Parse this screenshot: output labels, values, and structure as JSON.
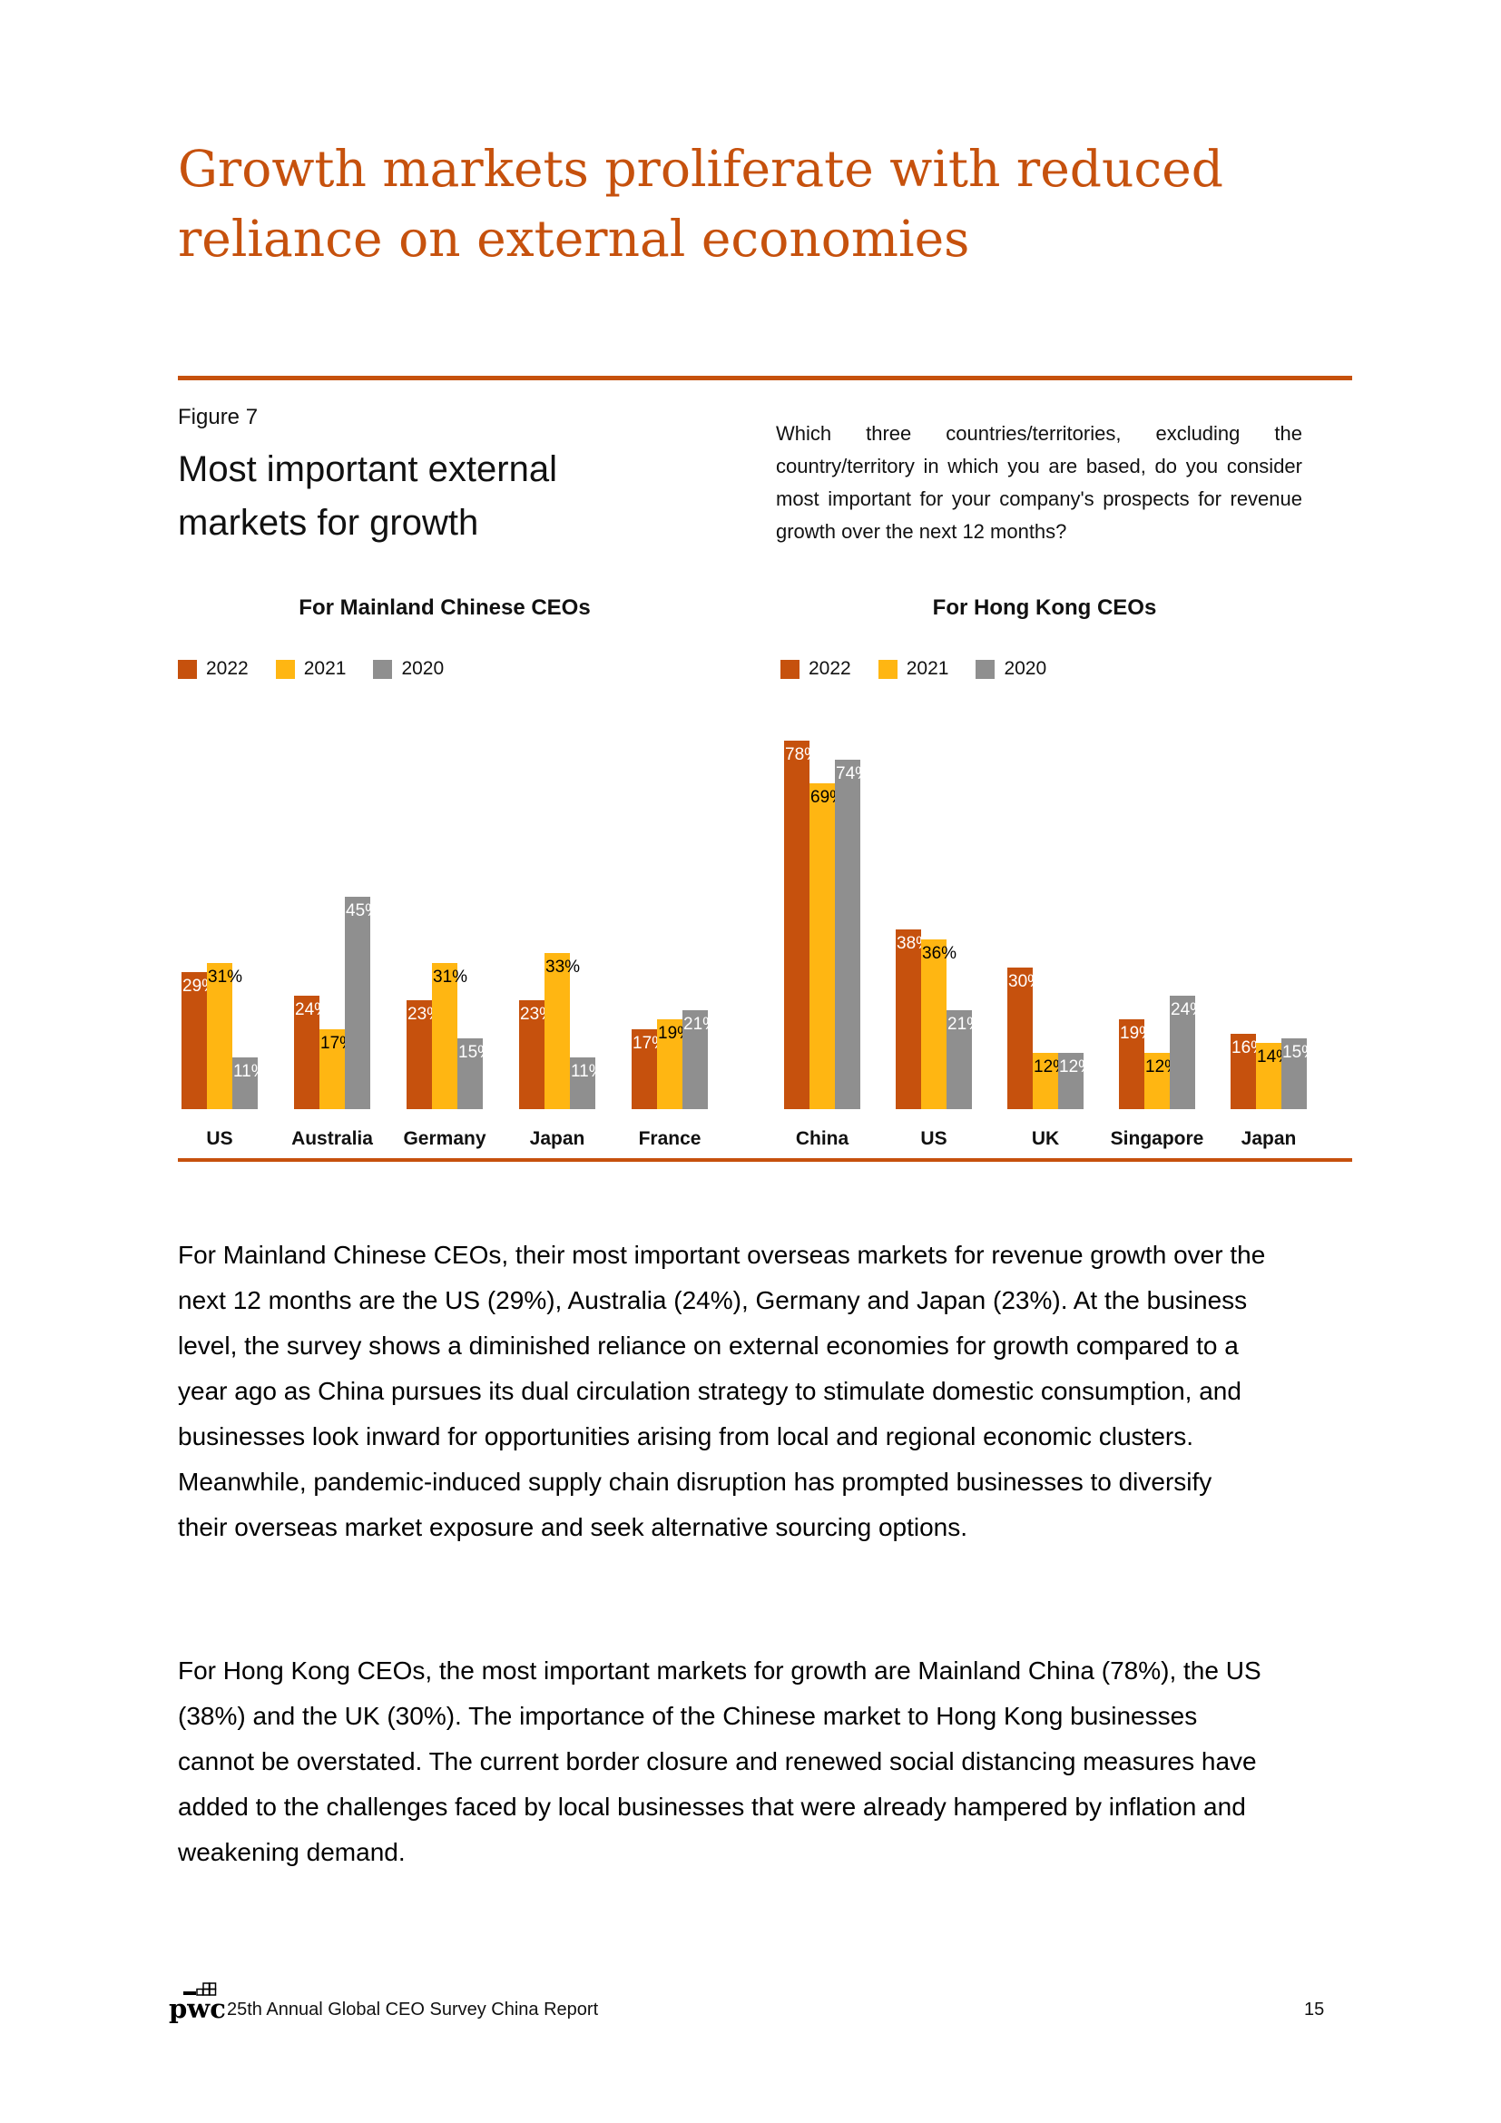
{
  "header": {
    "title_lines": [
      "Growth markets proliferate with reduced",
      "reliance on external economies"
    ]
  },
  "figure": {
    "label": "Figure 7",
    "heading_lines": [
      "Most important external",
      "markets for growth"
    ],
    "question": "Which three countries/territories, excluding the country/territory in which you are based, do you consider most important for your company's prospects for revenue growth over the next 12 months?"
  },
  "chart_data": [
    {
      "type": "bar",
      "title": "For Mainland Chinese CEOs",
      "categories": [
        "US",
        "Australia",
        "Germany",
        "Japan",
        "France"
      ],
      "series": [
        {
          "name": "2022",
          "color": "#C6510D",
          "label_color": "#FFFFFF",
          "values": [
            29,
            24,
            23,
            23,
            17
          ]
        },
        {
          "name": "2021",
          "color": "#FFB612",
          "label_color": "#000000",
          "values": [
            31,
            17,
            31,
            33,
            19
          ]
        },
        {
          "name": "2020",
          "color": "#8F8F8F",
          "label_color": "#FFFFFF",
          "values": [
            11,
            45,
            15,
            11,
            21
          ]
        }
      ],
      "unit": "%",
      "ylim": [
        0,
        85
      ],
      "grid": false,
      "legend_position": "top-left",
      "value_labels": "inside-top"
    },
    {
      "type": "bar",
      "title": "For Hong Kong CEOs",
      "categories": [
        "China",
        "US",
        "UK",
        "Singapore",
        "Japan"
      ],
      "series": [
        {
          "name": "2022",
          "color": "#C6510D",
          "label_color": "#FFFFFF",
          "values": [
            78,
            38,
            30,
            19,
            16
          ]
        },
        {
          "name": "2021",
          "color": "#FFB612",
          "label_color": "#000000",
          "values": [
            69,
            36,
            12,
            12,
            14
          ]
        },
        {
          "name": "2020",
          "color": "#8F8F8F",
          "label_color": "#FFFFFF",
          "values": [
            74,
            21,
            12,
            24,
            15
          ]
        }
      ],
      "unit": "%",
      "ylim": [
        0,
        85
      ],
      "grid": false,
      "legend_position": "top-left",
      "value_labels": "inside-top"
    }
  ],
  "body": {
    "paragraph1": "For Mainland Chinese CEOs, their most important overseas markets for revenue growth over the next 12 months are the US (29%), Australia (24%), Germany and Japan (23%). At the business level, the survey shows a diminished reliance on external economies for growth compared to a year ago as China pursues its dual circulation strategy to stimulate domestic consumption, and businesses look inward for opportunities arising from local and regional economic clusters. Meanwhile, pandemic-induced supply chain disruption has prompted businesses to diversify their overseas market exposure and seek alternative sourcing options.",
    "paragraph2": "For Hong Kong CEOs, the most important markets for growth are Mainland China (78%), the US (38%) and the UK (30%). The importance of the Chinese market to Hong Kong businesses cannot be overstated. The current border closure and renewed social distancing measures have added to the challenges faced by local businesses that were already hampered by inflation and weakening demand."
  },
  "footer": {
    "logo_text": "pwc",
    "report_title": "25th Annual Global CEO Survey China Report",
    "page_number": "15"
  },
  "colors": {
    "accent_orange": "#C6510D",
    "series_2022_orange": "#C6510D",
    "series_2021_yellow": "#FFB612",
    "series_2020_gray": "#8F8F8F"
  }
}
